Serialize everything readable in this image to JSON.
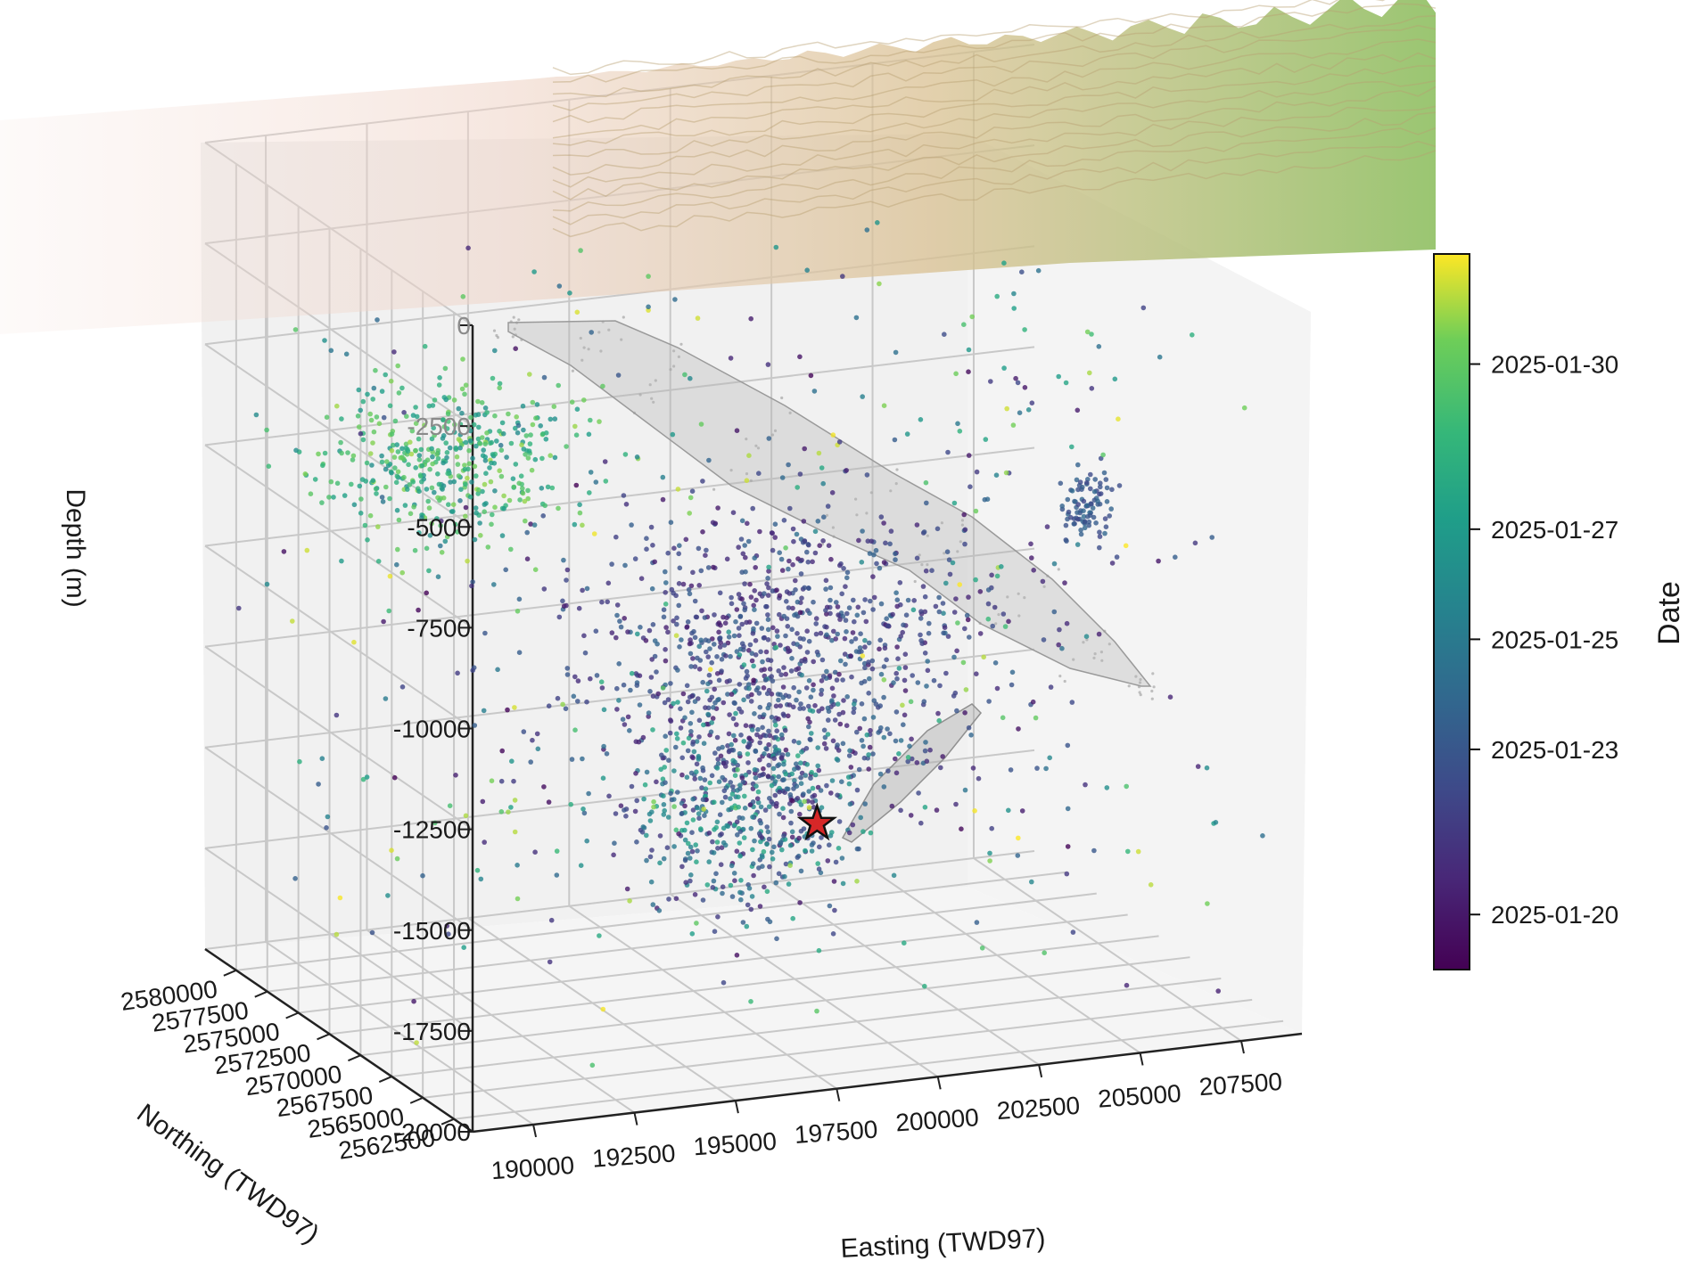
{
  "chart_data": {
    "type": "scatter",
    "projection": "3d",
    "title": "",
    "xlabel": "Easting (TWD97)",
    "ylabel": "Northing (TWD97)",
    "zlabel": "Depth (m)",
    "xlim": [
      188500,
      209000
    ],
    "ylim": [
      2561000,
      2582500
    ],
    "zlim": [
      -20000,
      0
    ],
    "x_ticks": [
      "190000",
      "192500",
      "195000",
      "197500",
      "200000",
      "202500",
      "205000",
      "207500"
    ],
    "y_ticks": [
      "2580000",
      "2577500",
      "2575000",
      "2572500",
      "2570000",
      "2567500",
      "2565000",
      "2562500"
    ],
    "z_ticks": [
      "0",
      "-2500",
      "-5000",
      "-7500",
      "-10000",
      "-12500",
      "-15000",
      "-17500",
      "-20000"
    ],
    "grid": true,
    "colorbar": {
      "label": "Date",
      "colormap": "viridis",
      "ticks": [
        "2025-01-20",
        "2025-01-23",
        "2025-01-25",
        "2025-01-27",
        "2025-01-30"
      ],
      "range": [
        "2025-01-19",
        "2025-02-01"
      ]
    },
    "series": [
      {
        "type": "scatter",
        "color_by": "date",
        "clusters": [
          {
            "x_center": 192500,
            "y_center": 2576000,
            "z_center": -7000,
            "spread": [
              1500,
              1500,
              900
            ],
            "date_range": [
              "2025-01-26",
              "2025-01-31"
            ]
          },
          {
            "x_center": 198500,
            "y_center": 2568500,
            "z_center": -11000,
            "spread": [
              2500,
              2500,
              1700
            ],
            "date_range": [
              "2025-01-20",
              "2025-01-24"
            ]
          },
          {
            "x_center": 197000,
            "y_center": 2566500,
            "z_center": -14000,
            "spread": [
              1300,
              1300,
              1300
            ],
            "date_range": [
              "2025-01-20",
              "2025-01-28"
            ]
          },
          {
            "x_center": 206500,
            "y_center": 2570000,
            "z_center": -8500,
            "spread": [
              400,
              400,
              450
            ],
            "date_range": [
              "2025-01-22",
              "2025-01-24"
            ]
          }
        ]
      },
      {
        "type": "surface",
        "color": "#8a8a8a",
        "description_role": "fault plane mesh"
      },
      {
        "type": "surface",
        "colormap": "terrain",
        "description_role": "topography"
      },
      {
        "type": "marker",
        "marker": "star",
        "color": "#d62728",
        "x": 198800,
        "y": 2566800,
        "z": -14800
      }
    ]
  }
}
